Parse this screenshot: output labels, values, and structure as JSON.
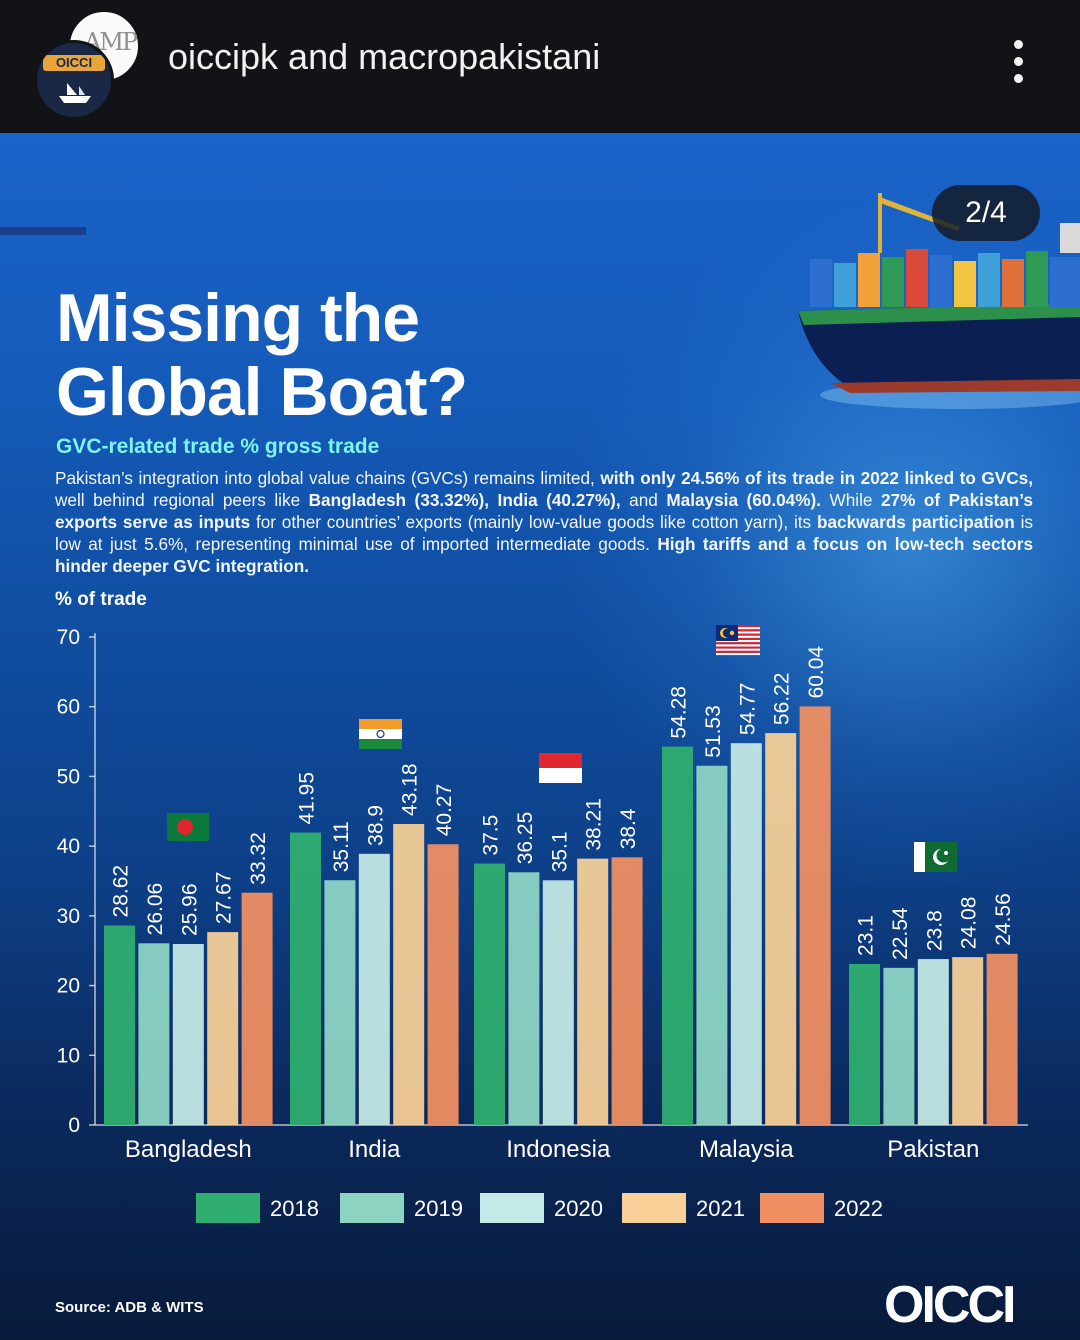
{
  "header": {
    "username": "oiccipk and macropakistani",
    "avatar_back_text": "AMP",
    "avatar_front_text": "OICCI"
  },
  "slide_counter": "2/4",
  "poster": {
    "title_line1": "Missing the",
    "title_line2": "Global Boat?",
    "subtitle": "GVC-related trade % gross trade",
    "desc": [
      {
        "t": "Pakistan’s integration into global value chains (GVCs) remains limited, ",
        "b": false
      },
      {
        "t": "with only 24.56% of its trade in 2022 linked to GVCs,",
        "b": true
      },
      {
        "t": " well behind regional peers like ",
        "b": false
      },
      {
        "t": "Bangladesh (33.32%), India (40.27%),",
        "b": true
      },
      {
        "t": " and ",
        "b": false
      },
      {
        "t": "Malaysia (60.04%).",
        "b": true
      },
      {
        "t": " While ",
        "b": false
      },
      {
        "t": "27% of Pakistan’s exports serve as inputs",
        "b": true
      },
      {
        "t": " for other countries’ exports (mainly low-value goods like cotton yarn), its ",
        "b": false
      },
      {
        "t": "backwards participation",
        "b": true
      },
      {
        "t": " is low at just 5.6%, representing minimal use of imported intermediate goods. ",
        "b": false
      },
      {
        "t": "High tariffs and a focus on low-tech sectors hinder deeper GVC integration.",
        "b": true
      }
    ],
    "source": "Source: ADB & WITS",
    "logo": "OICCI"
  },
  "chart_data": {
    "type": "bar",
    "title": "GVC-related trade % gross trade",
    "ylabel": "% of trade",
    "xlabel": "",
    "ylim": [
      0,
      70
    ],
    "yticks": [
      0,
      10,
      20,
      30,
      40,
      50,
      60,
      70
    ],
    "categories": [
      "Bangladesh",
      "India",
      "Indonesia",
      "Malaysia",
      "Pakistan"
    ],
    "series": [
      {
        "name": "2018",
        "color": "#2fae6f",
        "values": [
          28.62,
          41.95,
          37.5,
          54.28,
          23.1
        ]
      },
      {
        "name": "2019",
        "color": "#8ed4c3",
        "values": [
          26.06,
          35.11,
          36.25,
          51.53,
          22.54
        ]
      },
      {
        "name": "2020",
        "color": "#c5e9e6",
        "values": [
          25.96,
          38.9,
          35.1,
          54.77,
          23.8
        ]
      },
      {
        "name": "2021",
        "color": "#f7cf97",
        "values": [
          27.67,
          43.18,
          38.21,
          56.22,
          24.08
        ]
      },
      {
        "name": "2022",
        "color": "#f08f62",
        "values": [
          33.32,
          40.27,
          38.4,
          60.04,
          24.56
        ]
      }
    ],
    "value_labels": [
      [
        "28.62",
        "26.06",
        "25.96",
        "27.67",
        "33.32"
      ],
      [
        "41.95",
        "35.11",
        "38.9",
        "43.18",
        "40.27"
      ],
      [
        "37.5",
        "36.25",
        "35.1",
        "38.21",
        "38.4"
      ],
      [
        "54.28",
        "51.53",
        "54.77",
        "56.22",
        "60.04"
      ],
      [
        "23.1",
        "22.54",
        "23.8",
        "24.08",
        "24.56"
      ]
    ],
    "legend_position": "bottom",
    "grid": false
  }
}
